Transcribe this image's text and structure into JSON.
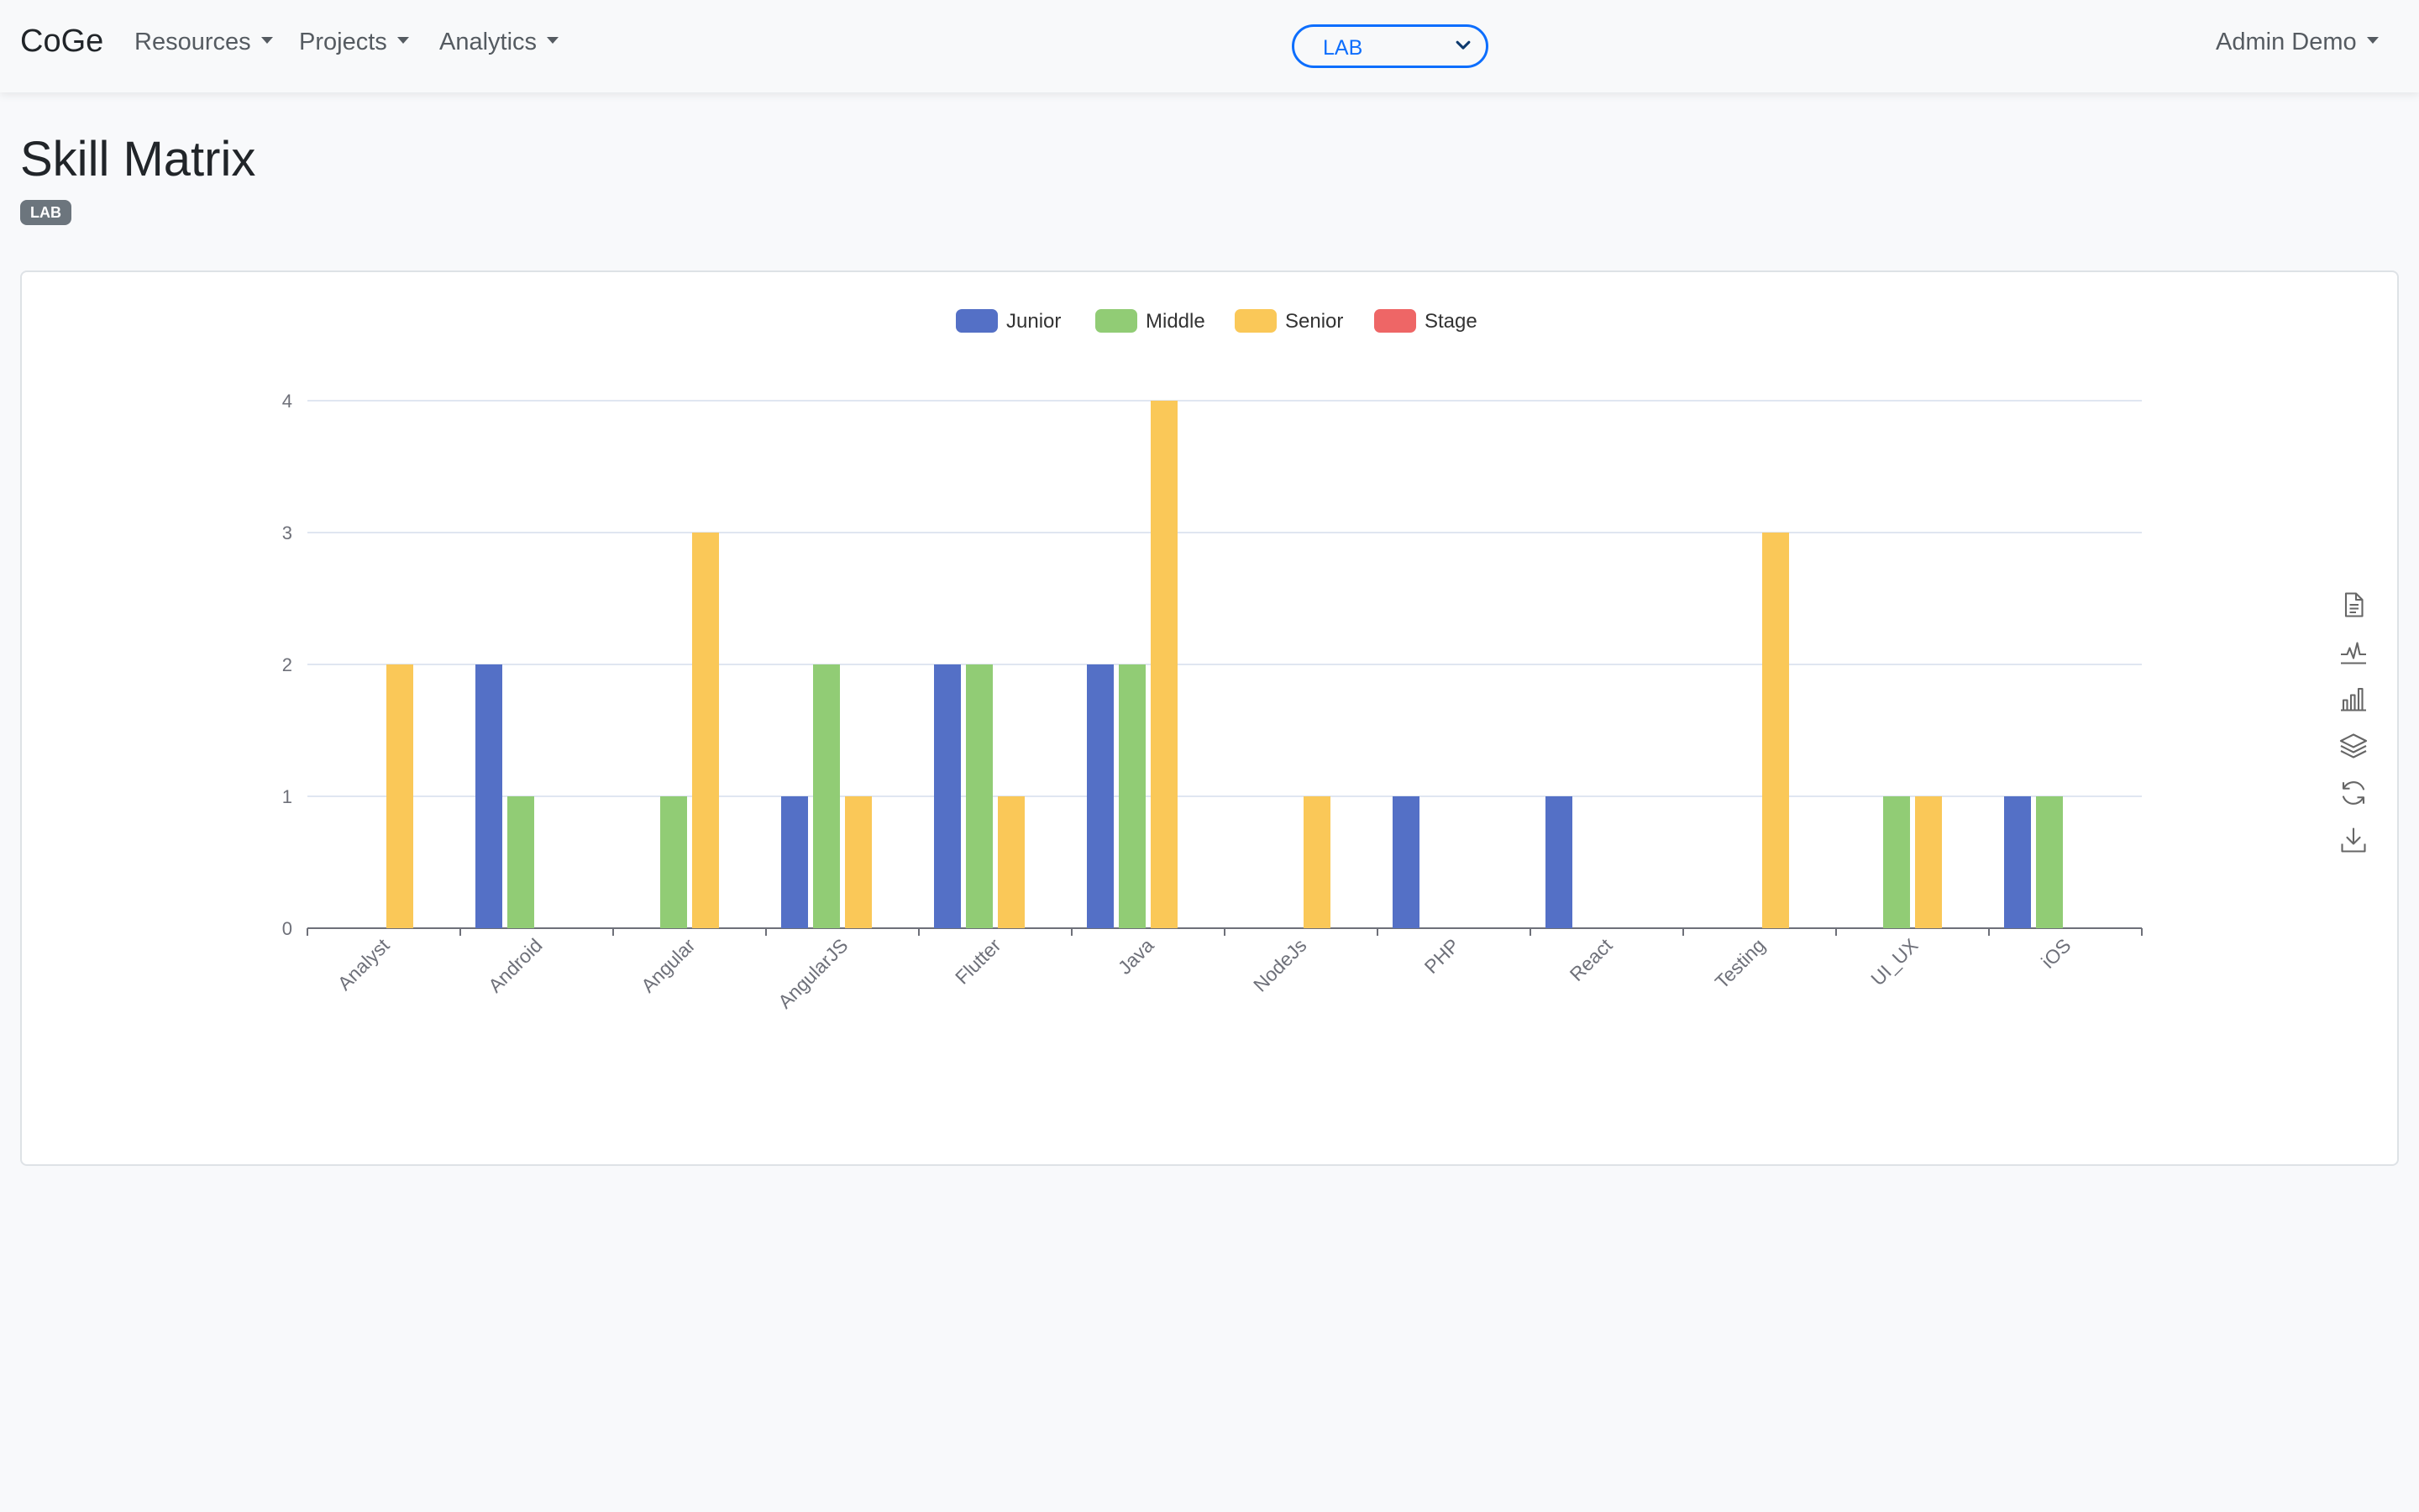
{
  "navbar": {
    "brand": "CoGe",
    "menus": [
      {
        "id": "resources",
        "label": "Resources"
      },
      {
        "id": "projects",
        "label": "Projects"
      },
      {
        "id": "analytics",
        "label": "Analytics"
      }
    ],
    "org_select": {
      "value": "LAB"
    },
    "user": "Admin Demo"
  },
  "header": {
    "title": "Skill Matrix",
    "badge": "LAB"
  },
  "toolbox": [
    {
      "name": "data-view-icon"
    },
    {
      "name": "line-chart-icon"
    },
    {
      "name": "bar-chart-icon"
    },
    {
      "name": "stack-icon"
    },
    {
      "name": "restore-icon"
    },
    {
      "name": "save-image-icon"
    }
  ],
  "chart_data": {
    "type": "bar",
    "title": "",
    "xlabel": "",
    "ylabel": "",
    "ylim": [
      0,
      4
    ],
    "yticks": [
      0,
      1,
      2,
      3,
      4
    ],
    "grid": true,
    "legend_position": "top-center",
    "categories": [
      "Analyst",
      "Android",
      "Angular",
      "AngularJS",
      "Flutter",
      "Java",
      "NodeJs",
      "PHP",
      "React",
      "Testing",
      "UI_UX",
      "iOS"
    ],
    "series": [
      {
        "name": "Junior",
        "color": "#5470c6",
        "values": [
          0,
          2,
          0,
          1,
          2,
          2,
          0,
          1,
          1,
          0,
          0,
          1
        ]
      },
      {
        "name": "Middle",
        "color": "#91cc75",
        "values": [
          0,
          1,
          1,
          2,
          2,
          2,
          0,
          0,
          0,
          0,
          1,
          1
        ]
      },
      {
        "name": "Senior",
        "color": "#fac858",
        "values": [
          2,
          0,
          3,
          1,
          1,
          4,
          1,
          0,
          0,
          3,
          1,
          0
        ]
      },
      {
        "name": "Stage",
        "color": "#ee6666",
        "values": [
          0,
          0,
          0,
          0,
          0,
          0,
          0,
          0,
          0,
          0,
          0,
          0
        ]
      }
    ]
  }
}
